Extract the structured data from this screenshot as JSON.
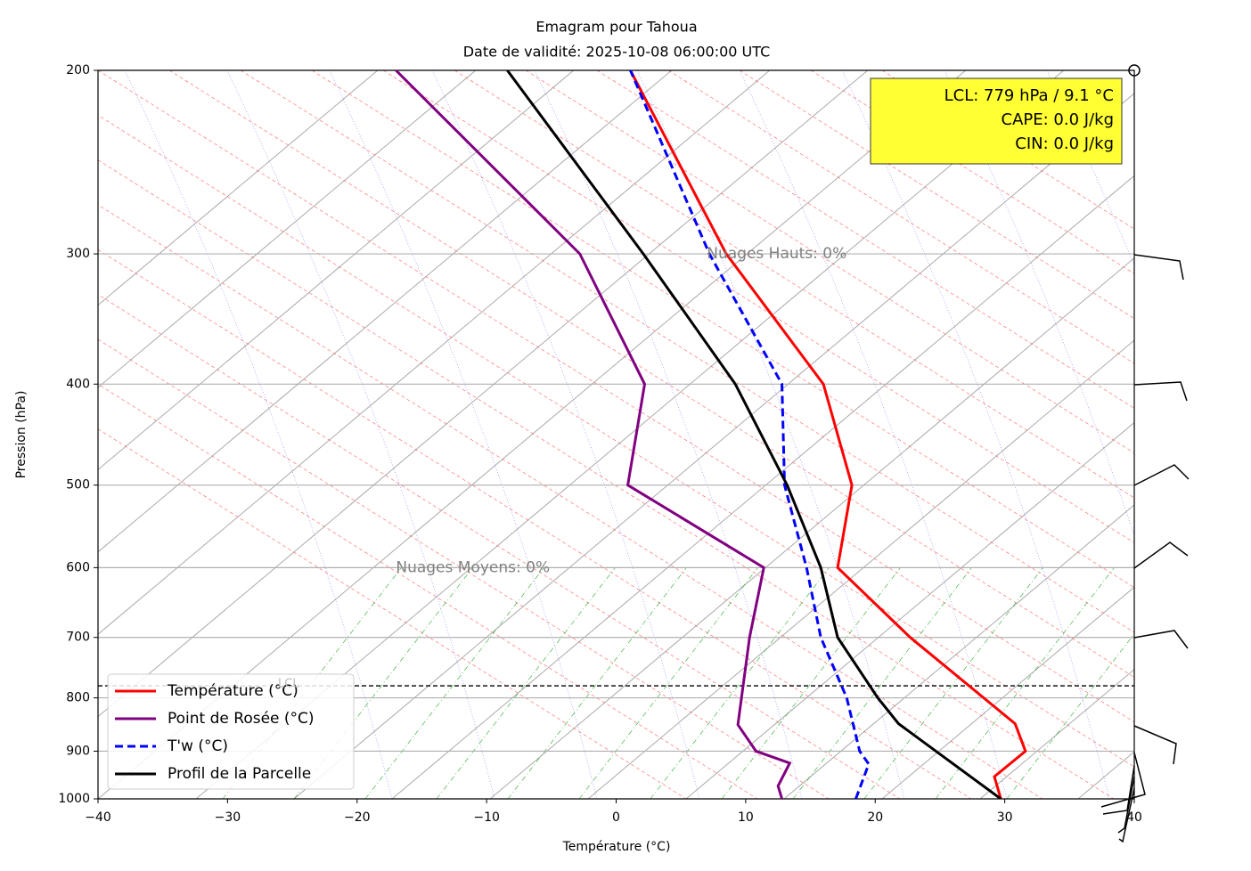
{
  "chart_data": {
    "type": "line",
    "title": "Emagram pour Tahoua",
    "subtitle": "Date de validité: 2025-10-08 06:00:00 UTC",
    "x_label": "Température (°C)",
    "y_label": "Pression (hPa)",
    "xlim": [
      -40,
      40
    ],
    "xticks": [
      {
        "value": -40,
        "label": "−40"
      },
      {
        "value": -30,
        "label": "−30"
      },
      {
        "value": -20,
        "label": "−20"
      },
      {
        "value": -10,
        "label": "−10"
      },
      0,
      10,
      20,
      30,
      40
    ],
    "ylim": [
      1000,
      200
    ],
    "yticks": [
      200,
      300,
      400,
      500,
      600,
      700,
      800,
      900,
      1000
    ],
    "yscale": "log",
    "grid": true,
    "legend": "lower left",
    "series": [
      {
        "name": "Température (°C)",
        "color": "#ff0000",
        "dash": false,
        "x": [
          29.7,
          29.2,
          31.6,
          30.8,
          22.7,
          17.1,
          18.2,
          16.0,
          8.5,
          1.1
        ],
        "values": [
          1000,
          952,
          900,
          847,
          700,
          600,
          500,
          400,
          300,
          200
        ]
      },
      {
        "name": "Point de Rosée (°C)",
        "color": "#800080",
        "dash": false,
        "x": [
          12.8,
          12.5,
          13.4,
          10.8,
          9.4,
          10.3,
          11.4,
          0.9,
          2.2,
          -2.8,
          -17.0
        ],
        "values": [
          1000,
          972,
          924,
          900,
          849,
          700,
          600,
          500,
          400,
          300,
          200
        ]
      },
      {
        "name": "T'w (°C)",
        "color": "#0000ff",
        "dash": true,
        "x": [
          18.5,
          19.5,
          18.8,
          17.8,
          15.8,
          14.7,
          13.0,
          12.8,
          7.2,
          1.1
        ],
        "values": [
          1000,
          926,
          900,
          800,
          700,
          600,
          500,
          400,
          300,
          200
        ]
      },
      {
        "name": "Profil de la Parcelle",
        "color": "#000000",
        "dash": false,
        "x": [
          29.7,
          21.8,
          20.2,
          17.1,
          15.8,
          13.2,
          9.2,
          2.1,
          -8.4
        ],
        "values": [
          1000,
          847,
          800,
          700,
          600,
          500,
          400,
          300,
          200
        ]
      }
    ],
    "lcl": {
      "pressure": 779,
      "label": "LCL"
    },
    "info_box": [
      "LCL: 779 hPa / 9.1 °C",
      "CAPE: 0.0 J/kg",
      "CIN: 0.0 J/kg"
    ],
    "annotations": [
      {
        "text": "Nuages Hauts: 0%",
        "x": 7,
        "pressure": 300
      },
      {
        "text": "Nuages Moyens: 0%",
        "x": -17,
        "pressure": 600
      }
    ]
  }
}
